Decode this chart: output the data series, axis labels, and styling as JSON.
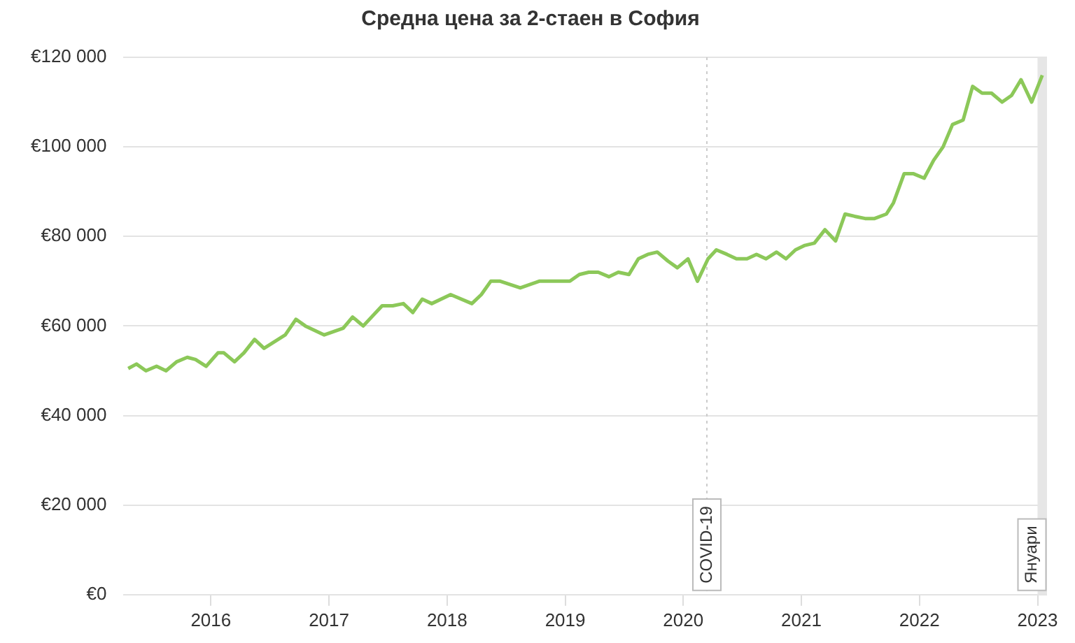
{
  "chart_data": {
    "type": "line",
    "title": "Средна цена за 2-стаен в София",
    "series": [
      {
        "color": "#8cc859",
        "x": [
          2015.3,
          2015.37,
          2015.45,
          2015.54,
          2015.62,
          2015.71,
          2015.8,
          2015.87,
          2015.96,
          2016.06,
          2016.11,
          2016.2,
          2016.28,
          2016.37,
          2016.45,
          2016.63,
          2016.72,
          2016.8,
          2016.96,
          2017.12,
          2017.2,
          2017.29,
          2017.45,
          2017.54,
          2017.63,
          2017.71,
          2017.79,
          2017.87,
          2018.03,
          2018.21,
          2018.29,
          2018.37,
          2018.45,
          2018.62,
          2018.78,
          2019.04,
          2019.12,
          2019.2,
          2019.28,
          2019.37,
          2019.45,
          2019.54,
          2019.62,
          2019.7,
          2019.78,
          2019.87,
          2019.95,
          2020.04,
          2020.12,
          2020.21,
          2020.28,
          2020.37,
          2020.45,
          2020.54,
          2020.62,
          2020.7,
          2020.79,
          2020.87,
          2020.95,
          2021.03,
          2021.11,
          2021.2,
          2021.29,
          2021.37,
          2021.45,
          2021.54,
          2021.62,
          2021.72,
          2021.78,
          2021.87,
          2021.95,
          2022.04,
          2022.12,
          2022.2,
          2022.28,
          2022.37,
          2022.45,
          2022.53,
          2022.61,
          2022.7,
          2022.78,
          2022.86,
          2022.95,
          2023.04
        ],
        "values": [
          50500,
          51500,
          50000,
          51000,
          50000,
          52000,
          53000,
          52500,
          51000,
          54000,
          54000,
          52000,
          54000,
          57000,
          55000,
          58000,
          61500,
          60000,
          58000,
          59500,
          62000,
          60000,
          64500,
          64500,
          65000,
          63000,
          66000,
          65000,
          67000,
          65000,
          67000,
          70000,
          70000,
          68500,
          70000,
          70000,
          71500,
          72000,
          72000,
          71000,
          72000,
          71500,
          75000,
          76000,
          76500,
          74500,
          73000,
          75000,
          70000,
          75000,
          77000,
          76000,
          75000,
          75000,
          76000,
          75000,
          76500,
          75000,
          77000,
          78000,
          78500,
          81500,
          79000,
          85000,
          84500,
          84000,
          84000,
          85000,
          87500,
          94000,
          94000,
          93000,
          97000,
          100000,
          105000,
          106000,
          113500,
          112000,
          112000,
          110000,
          111500,
          115000,
          110000,
          116000
        ]
      }
    ],
    "xlim": [
      2015.26,
      2023.08
    ],
    "xticks": [
      2016,
      2017,
      2018,
      2019,
      2020,
      2021,
      2022,
      2023
    ],
    "ylim": [
      0,
      120000
    ],
    "yticks": [
      {
        "value": 0,
        "label": "€0"
      },
      {
        "value": 20000,
        "label": "€20 000"
      },
      {
        "value": 40000,
        "label": "€40 000"
      },
      {
        "value": 60000,
        "label": "€60 000"
      },
      {
        "value": 80000,
        "label": "€80 000"
      },
      {
        "value": 100000,
        "label": "€100 000"
      },
      {
        "value": 120000,
        "label": "€120 000"
      }
    ],
    "ref_lines": [
      {
        "axis": "x",
        "value": 2020.2,
        "label": "COVID-19",
        "color": "#cccccc",
        "line_style": "dotted"
      }
    ],
    "bands": [
      {
        "axis": "x",
        "from": 2023.0,
        "to": 2023.08,
        "label": "Януари",
        "color": "#e6e6e6"
      }
    ],
    "grid": "y",
    "legend": false,
    "marker": "none",
    "line_style": "solid"
  }
}
